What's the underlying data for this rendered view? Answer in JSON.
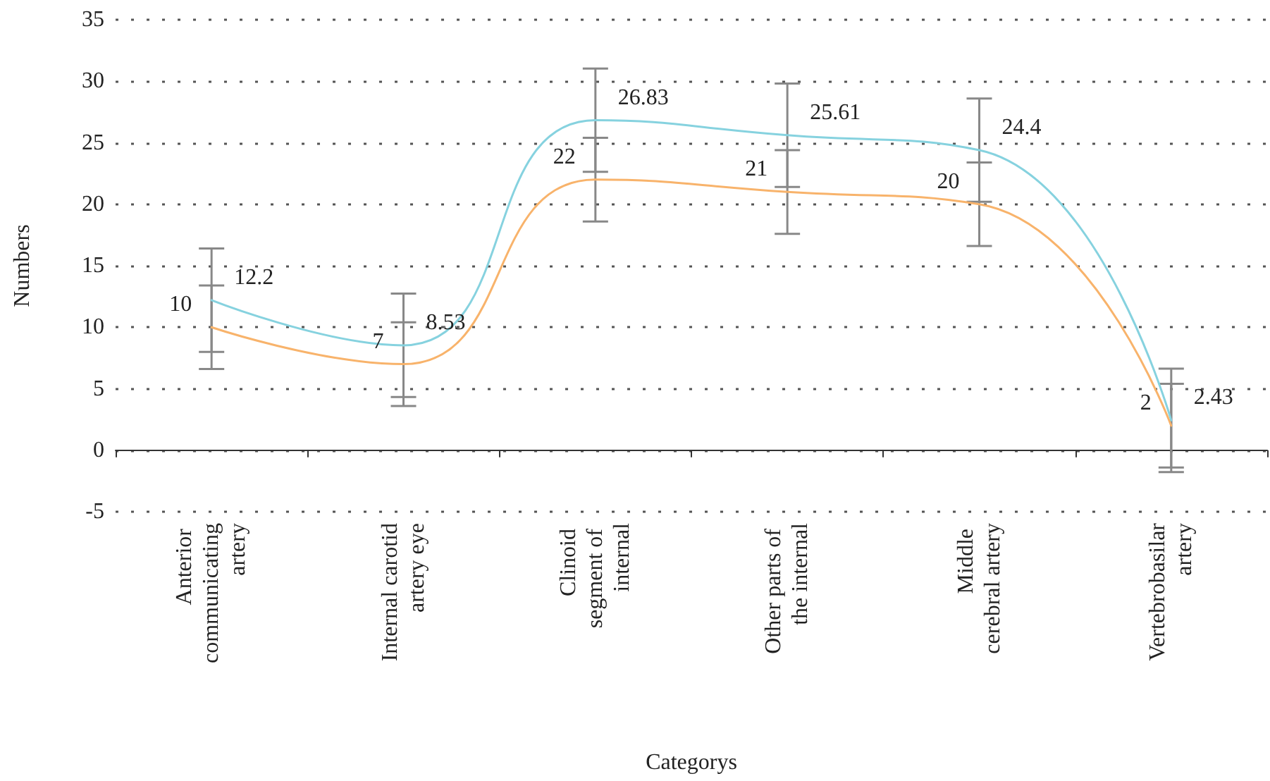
{
  "chart_data": {
    "type": "line",
    "xlabel": "Categorys",
    "ylabel": "Numbers",
    "categories": [
      "Anterior communicating artery",
      "Internal carotid artery eye",
      "Clinoid segment of internal",
      "Other parts of the internal",
      "Middle cerebral artery",
      "Vertebrobasilar artery"
    ],
    "series": [
      {
        "color": "#f8b36b",
        "values": [
          10,
          7,
          22,
          21,
          20,
          2
        ],
        "errors": [
          3.4,
          3.4,
          3.4,
          3.4,
          3.4,
          3.4
        ]
      },
      {
        "color": "#86d2df",
        "values": [
          12.2,
          8.53,
          26.83,
          25.61,
          24.4,
          2.43
        ],
        "errors": [
          4.2,
          4.2,
          4.2,
          4.2,
          4.2,
          4.2
        ]
      }
    ],
    "ylim": [
      -5,
      35
    ],
    "yticks": [
      -5,
      0,
      5,
      10,
      15,
      20,
      25,
      30,
      35
    ],
    "grid": "y",
    "marker": "none",
    "line_style": "solid",
    "data_labels": true
  }
}
